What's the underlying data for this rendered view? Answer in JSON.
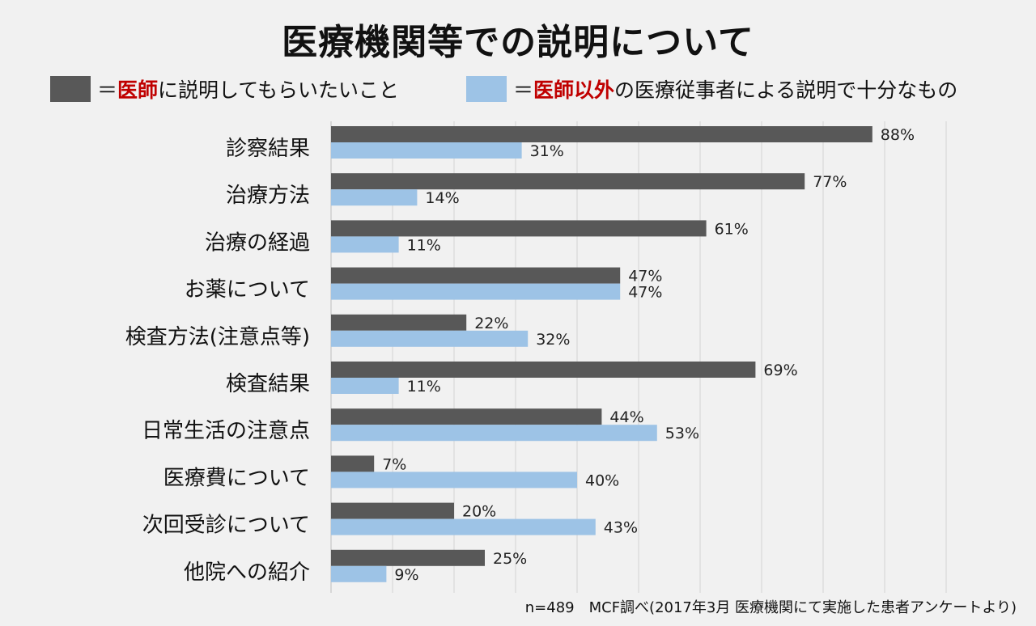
{
  "title": "医療機関等での説明について",
  "legend": {
    "eq": "＝",
    "doctor_prefix": "医師",
    "doctor_suffix": "に説明してもらいたいこと",
    "other_prefix": "医師以外",
    "other_suffix": "の医療従事者による説明で十分なもの"
  },
  "colors": {
    "doctor": "#585858",
    "other": "#9dc3e6",
    "highlight": "#c00000",
    "grid": "#d4d4d4"
  },
  "footnote": "n=489　MCF調べ(2017年3月 医療機関にて実施した患者アンケートより)",
  "chart_data": {
    "type": "bar",
    "orientation": "horizontal",
    "categories": [
      "診察結果",
      "治療方法",
      "治療の経過",
      "お薬について",
      "検査方法(注意点等)",
      "検査結果",
      "日常生活の注意点",
      "医療費について",
      "次回受診について",
      "他院への紹介"
    ],
    "series": [
      {
        "name": "医師に説明してもらいたいこと",
        "values": [
          88,
          77,
          61,
          47,
          22,
          69,
          44,
          7,
          20,
          25
        ]
      },
      {
        "name": "医師以外の医療従事者による説明で十分なもの",
        "values": [
          31,
          14,
          11,
          47,
          32,
          11,
          53,
          40,
          43,
          9
        ]
      }
    ],
    "value_suffix": "%",
    "xlim": [
      0,
      100
    ],
    "grid": true,
    "legend_position": "top"
  }
}
